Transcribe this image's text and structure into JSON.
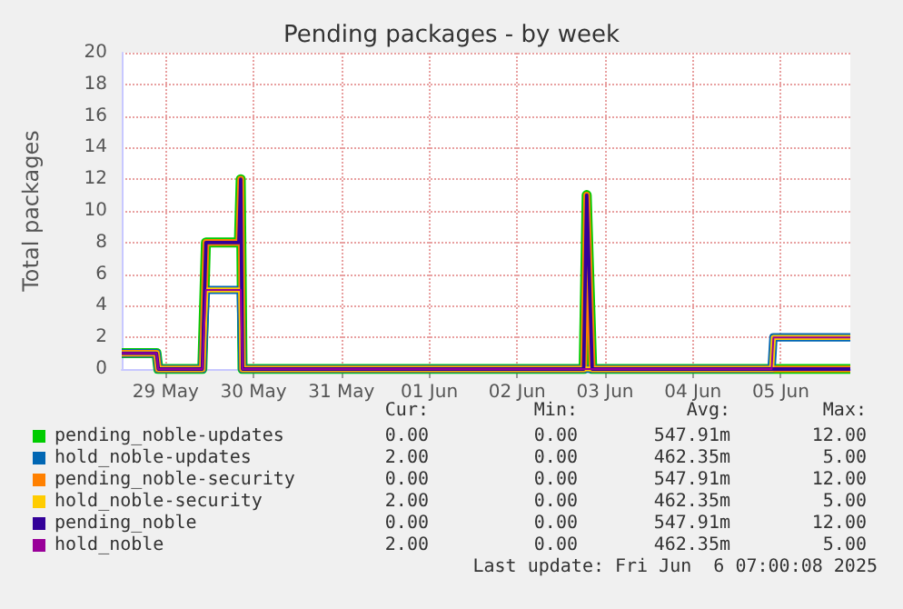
{
  "chart_data": {
    "type": "line",
    "title": "Pending packages - by week",
    "ylabel": "Total packages",
    "x": [
      "2025-05-29T00:00",
      "2025-05-29T09:30",
      "2025-05-29T10:00",
      "2025-05-29T22:00",
      "2025-05-29T23:00",
      "2025-05-30T08:00",
      "2025-05-30T08:30",
      "2025-05-30T09:00",
      "2025-06-03T06:10",
      "2025-06-03T07:00",
      "2025-06-03T08:30",
      "2025-06-05T09:30",
      "2025-06-05T10:00",
      "2025-06-06T07:00"
    ],
    "series": [
      {
        "name": "pending_noble-updates",
        "color": "#00cc00",
        "values": [
          1,
          1,
          0,
          0,
          8,
          8,
          12,
          0,
          0,
          11,
          0,
          0,
          0,
          0
        ]
      },
      {
        "name": "hold_noble-updates",
        "color": "#0066b3",
        "values": [
          1,
          1,
          0,
          0,
          5,
          5,
          5,
          0,
          0,
          0,
          0,
          0,
          2,
          2
        ]
      },
      {
        "name": "pending_noble-security",
        "color": "#ff8000",
        "values": [
          1,
          1,
          0,
          0,
          8,
          8,
          12,
          0,
          0,
          11,
          0,
          0,
          0,
          0
        ]
      },
      {
        "name": "hold_noble-security",
        "color": "#ffcc00",
        "values": [
          1,
          1,
          0,
          0,
          5,
          5,
          5,
          0,
          0,
          0,
          0,
          0,
          2,
          2
        ]
      },
      {
        "name": "pending_noble",
        "color": "#330099",
        "values": [
          1,
          1,
          0,
          0,
          8,
          8,
          12,
          0,
          0,
          11,
          0,
          0,
          0,
          0
        ]
      },
      {
        "name": "hold_noble",
        "color": "#990099",
        "values": [
          1,
          1,
          0,
          0,
          5,
          5,
          5,
          0,
          0,
          0,
          0,
          0,
          2,
          2
        ]
      }
    ],
    "xlim": [
      "2025-05-29T00:00",
      "2025-06-06T07:00"
    ],
    "xticks": [
      {
        "value": "2025-05-29T12:00",
        "label": "29 May"
      },
      {
        "value": "2025-05-30T12:00",
        "label": "30 May"
      },
      {
        "value": "2025-05-31T12:00",
        "label": "31 May"
      },
      {
        "value": "2025-06-01T12:00",
        "label": "01 Jun"
      },
      {
        "value": "2025-06-02T12:00",
        "label": "02 Jun"
      },
      {
        "value": "2025-06-03T12:00",
        "label": "03 Jun"
      },
      {
        "value": "2025-06-04T12:00",
        "label": "04 Jun"
      },
      {
        "value": "2025-06-05T12:00",
        "label": "05 Jun"
      }
    ],
    "ylim": [
      0,
      20
    ],
    "yticks": [
      0,
      2,
      4,
      6,
      8,
      10,
      12,
      14,
      16,
      18,
      20
    ],
    "grid": true,
    "legend": "bottom",
    "marker": "none",
    "line_style": "solid",
    "annotations": [
      "Cur:",
      "Min:",
      "Avg:",
      "Max:",
      "0.00",
      "0.00",
      "547.91m",
      "12.00",
      "2.00",
      "0.00",
      "462.35m",
      "5.00",
      "0.00",
      "0.00",
      "547.91m",
      "12.00",
      "2.00",
      "0.00",
      "462.35m",
      "5.00",
      "0.00",
      "0.00",
      "547.91m",
      "12.00",
      "2.00",
      "0.00",
      "462.35m",
      "5.00",
      "Last update: Fri Jun  6 07:00:08 2025"
    ]
  }
}
